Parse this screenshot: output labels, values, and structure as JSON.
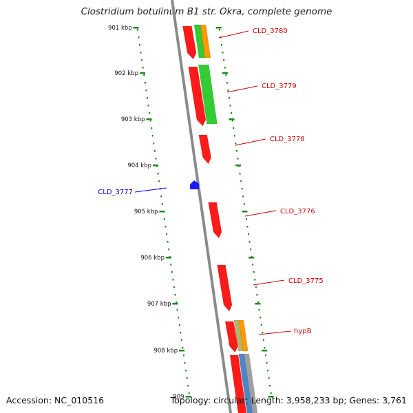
{
  "title": "Clostridium botulinum B1 str. Okra, complete genome",
  "footer": {
    "accession": "Accession: NC_010516",
    "summary": "Topology: circular; Length: 3,958,233 bp; Genes: 3,761"
  },
  "colors": {
    "scale_dots": "#1a8a1a",
    "backbone": "#8a8a8a",
    "gene_red": "#ff1a1a",
    "gene_green": "#33cc33",
    "gene_orange": "#ff9900",
    "gene_blue": "#1a1aff",
    "gene_steel": "#4a86c8",
    "gene_olive": "#b5b56a",
    "gene_grey": "#a0a0a0",
    "label_forward": "#cc0000",
    "label_reverse": "#0000cc"
  },
  "scale": {
    "unit": "kbp",
    "ticks": [
      "901 kbp",
      "902 kbp",
      "903 kbp",
      "904 kbp",
      "905 kbp",
      "906 kbp",
      "907 kbp",
      "908 kbp",
      "909"
    ]
  },
  "genes": [
    {
      "label": "CLD_3780",
      "strand": "forward"
    },
    {
      "label": "CLD_3779",
      "strand": "forward"
    },
    {
      "label": "CLD_3778",
      "strand": "forward"
    },
    {
      "label": "CLD_3777",
      "strand": "reverse"
    },
    {
      "label": "CLD_3776",
      "strand": "forward"
    },
    {
      "label": "CLD_3775",
      "strand": "forward"
    },
    {
      "label": "hypB",
      "strand": "forward"
    }
  ]
}
